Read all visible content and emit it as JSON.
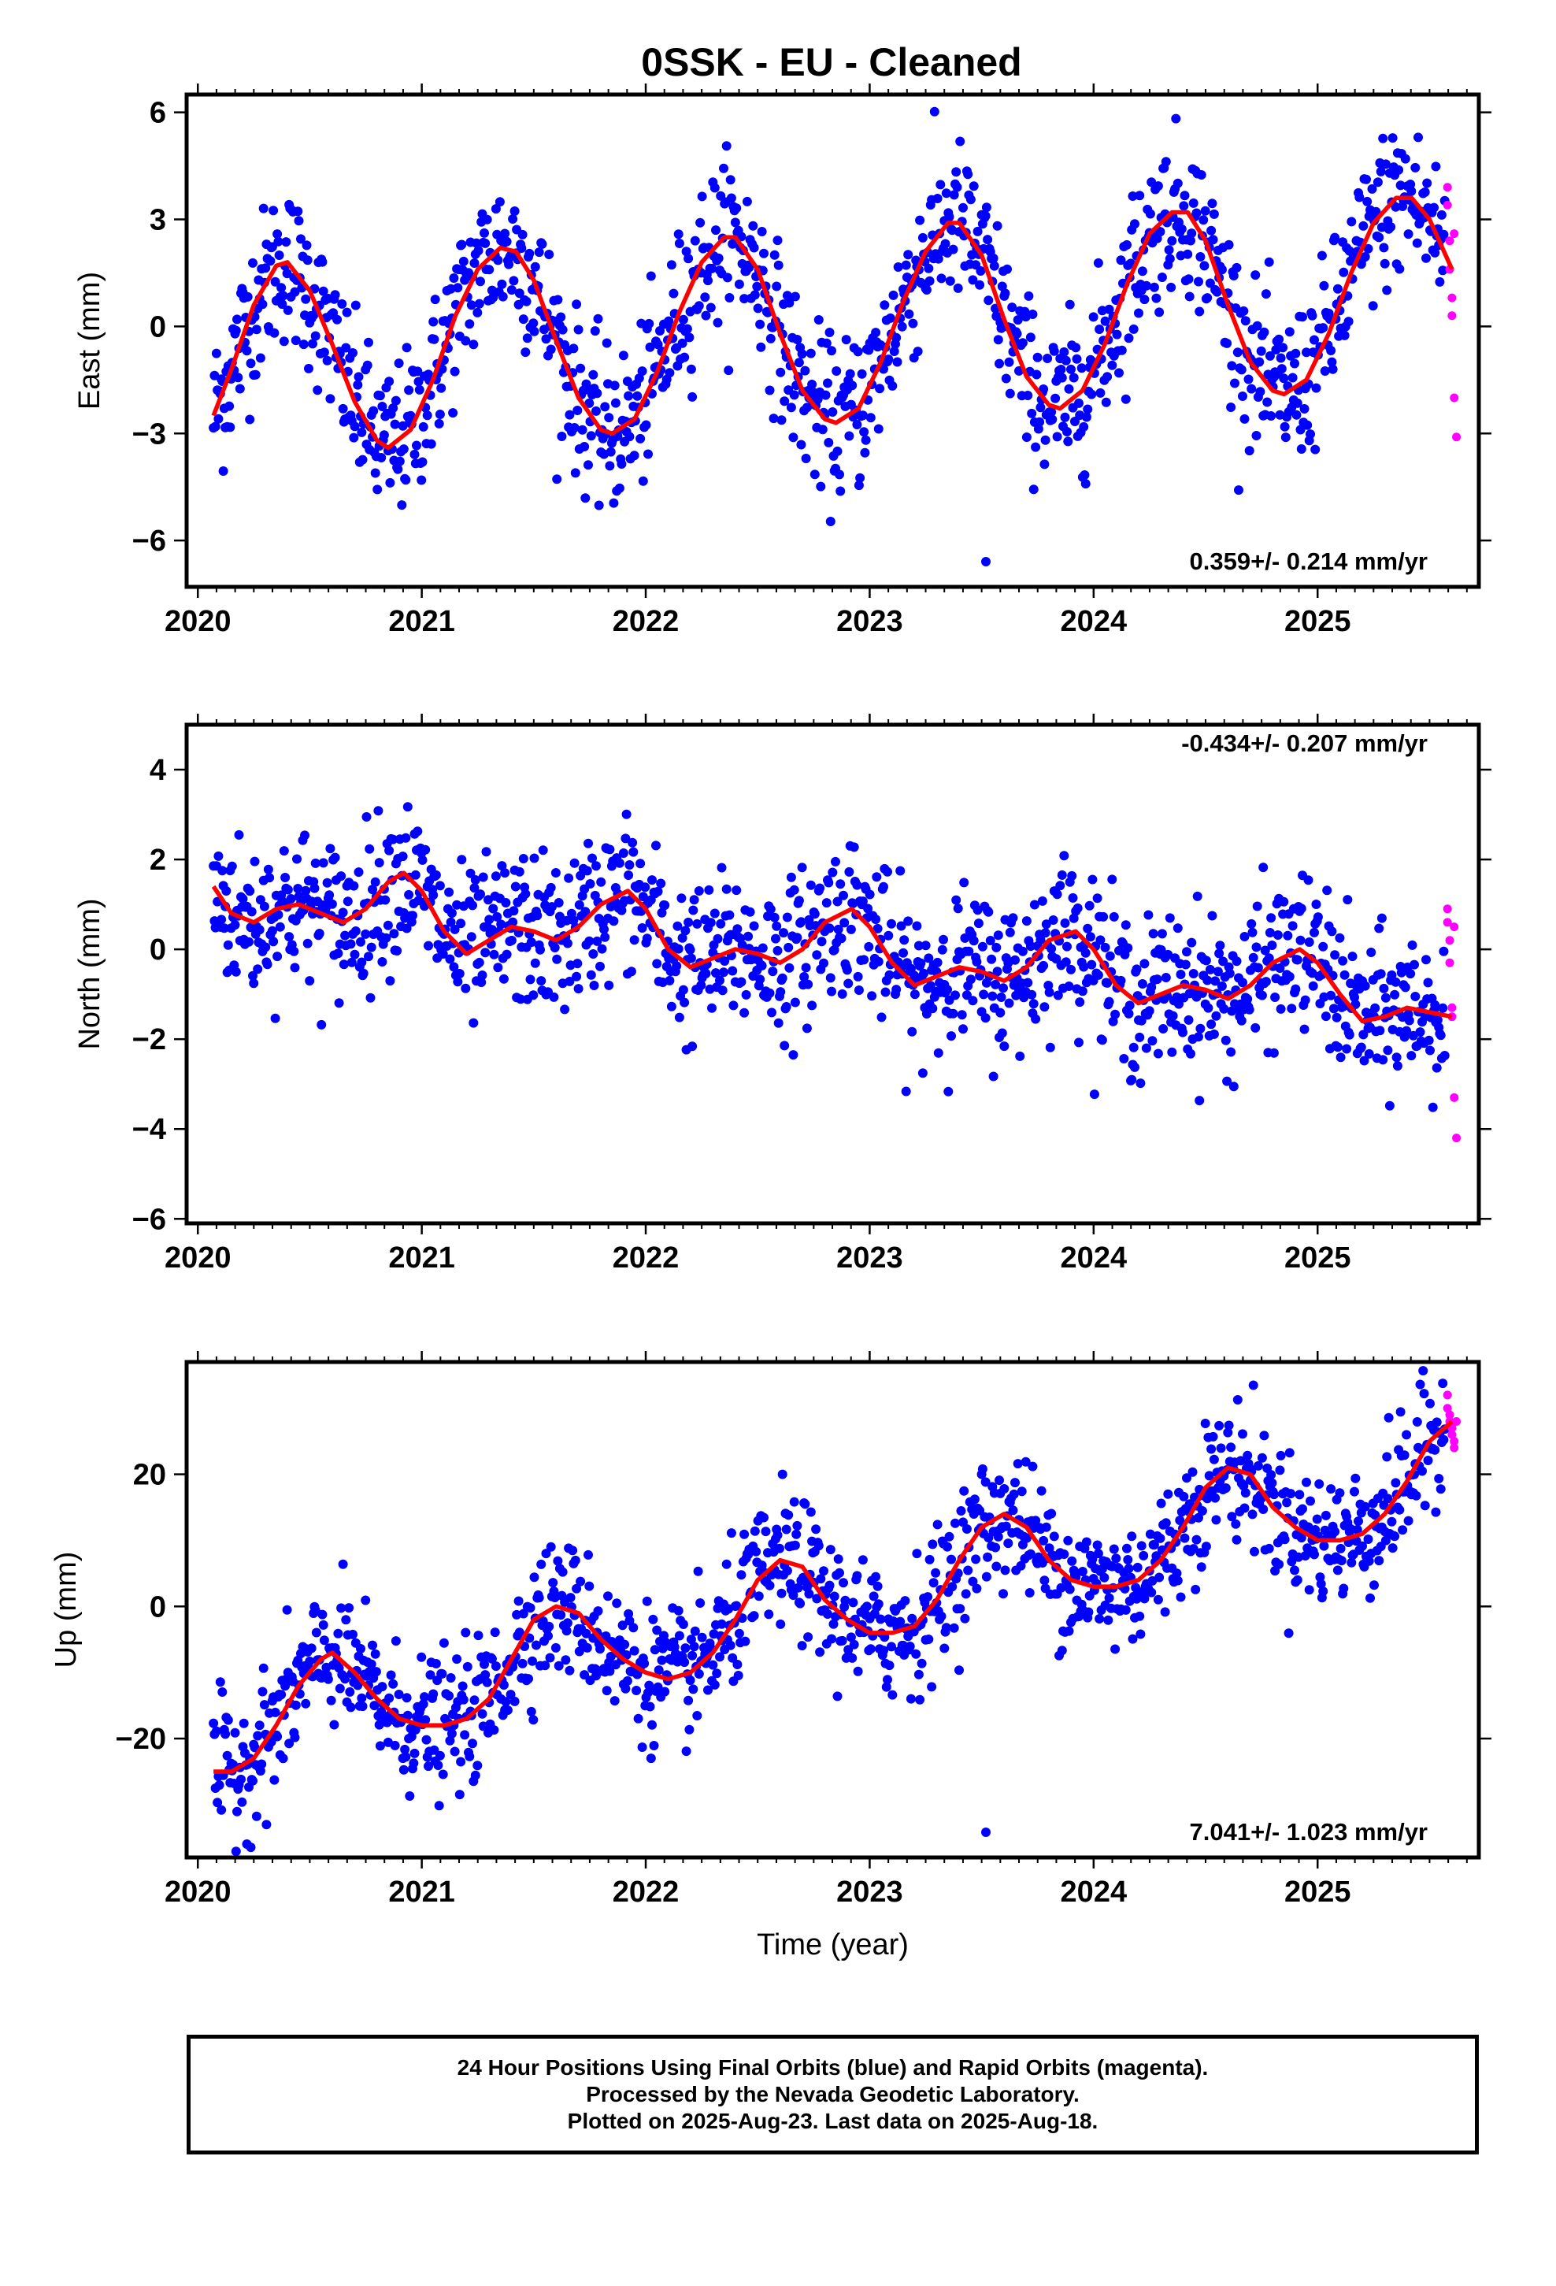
{
  "title": "0SSK  - EU - Cleaned",
  "caption": {
    "line1": "24 Hour Positions Using Final Orbits (blue) and Rapid Orbits (magenta).",
    "line2": "Processed by the Nevada Geodetic Laboratory.",
    "line3": "Plotted on 2025-Aug-23. Last data on 2025-Aug-18."
  },
  "colors": {
    "final": "#0000ff",
    "rapid": "#ff00ff",
    "model": "#ff0000",
    "frame": "#000000"
  },
  "chart_data": [
    {
      "type": "scatter",
      "ylabel": "East (mm)",
      "xlabel": "",
      "xlim": [
        2019.95,
        2025.72
      ],
      "ylim": [
        -7.3,
        6.5
      ],
      "xticks": [
        2020,
        2021,
        2022,
        2023,
        2024,
        2025
      ],
      "yticks": [
        -6,
        -3,
        0,
        3,
        6
      ],
      "rate_label": "0.359+/- 0.214 mm/yr",
      "rate_position": "bottom-right",
      "model_x": [
        2020.07,
        2020.15,
        2020.25,
        2020.35,
        2020.4,
        2020.5,
        2020.6,
        2020.7,
        2020.8,
        2020.85,
        2020.95,
        2021.05,
        2021.15,
        2021.25,
        2021.35,
        2021.42,
        2021.5,
        2021.6,
        2021.7,
        2021.8,
        2021.85,
        2021.95,
        2022.05,
        2022.15,
        2022.25,
        2022.35,
        2022.4,
        2022.5,
        2022.6,
        2022.7,
        2022.8,
        2022.85,
        2022.95,
        2023.05,
        2023.15,
        2023.25,
        2023.35,
        2023.4,
        2023.5,
        2023.6,
        2023.7,
        2023.8,
        2023.85,
        2023.95,
        2024.05,
        2024.15,
        2024.25,
        2024.35,
        2024.42,
        2024.5,
        2024.6,
        2024.7,
        2024.8,
        2024.85,
        2024.95,
        2025.05,
        2025.15,
        2025.25,
        2025.35,
        2025.42,
        2025.5,
        2025.55,
        2025.6
      ],
      "model_y": [
        -2.5,
        -1.2,
        0.6,
        1.7,
        1.8,
        1.0,
        -0.5,
        -2.1,
        -3.2,
        -3.4,
        -2.9,
        -1.5,
        0.3,
        1.6,
        2.2,
        2.1,
        1.3,
        -0.4,
        -2.0,
        -2.9,
        -3.0,
        -2.6,
        -1.3,
        0.4,
        1.8,
        2.5,
        2.5,
        1.6,
        -0.2,
        -1.8,
        -2.6,
        -2.7,
        -2.3,
        -1.0,
        0.7,
        2.1,
        2.9,
        2.9,
        2.0,
        0.2,
        -1.4,
        -2.2,
        -2.3,
        -1.8,
        -0.5,
        1.2,
        2.6,
        3.2,
        3.2,
        2.4,
        0.6,
        -1.0,
        -1.8,
        -1.9,
        -1.5,
        -0.2,
        1.5,
        2.9,
        3.6,
        3.6,
        3.0,
        2.3,
        1.6
      ],
      "rapid_x": [
        2025.58,
        2025.58,
        2025.59,
        2025.59,
        2025.6,
        2025.6,
        2025.61,
        2025.61,
        2025.62
      ],
      "rapid_y": [
        3.9,
        3.4,
        2.4,
        1.6,
        0.8,
        0.3,
        2.6,
        -2.0,
        -3.1
      ]
    },
    {
      "type": "scatter",
      "ylabel": "North (mm)",
      "xlabel": "",
      "xlim": [
        2019.95,
        2025.72
      ],
      "ylim": [
        -6.1,
        5.0
      ],
      "xticks": [
        2020,
        2021,
        2022,
        2023,
        2024,
        2025
      ],
      "yticks": [
        -6,
        -4,
        -2,
        0,
        2,
        4
      ],
      "rate_label": "-0.434+/- 0.207 mm/yr",
      "rate_position": "top-right",
      "model_x": [
        2020.07,
        2020.15,
        2020.25,
        2020.35,
        2020.45,
        2020.55,
        2020.65,
        2020.75,
        2020.85,
        2020.92,
        2021.0,
        2021.1,
        2021.2,
        2021.3,
        2021.4,
        2021.5,
        2021.6,
        2021.7,
        2021.8,
        2021.92,
        2022.0,
        2022.1,
        2022.2,
        2022.3,
        2022.4,
        2022.5,
        2022.6,
        2022.7,
        2022.8,
        2022.92,
        2023.0,
        2023.1,
        2023.2,
        2023.3,
        2023.4,
        2023.5,
        2023.6,
        2023.7,
        2023.8,
        2023.92,
        2024.0,
        2024.1,
        2024.2,
        2024.3,
        2024.4,
        2024.5,
        2024.6,
        2024.7,
        2024.8,
        2024.92,
        2025.0,
        2025.1,
        2025.2,
        2025.3,
        2025.4,
        2025.5,
        2025.6
      ],
      "model_y": [
        1.4,
        0.8,
        0.6,
        0.9,
        1.0,
        0.8,
        0.6,
        0.9,
        1.5,
        1.7,
        1.3,
        0.4,
        -0.1,
        0.2,
        0.5,
        0.4,
        0.2,
        0.5,
        1.0,
        1.3,
        0.9,
        0.0,
        -0.4,
        -0.2,
        0.0,
        -0.1,
        -0.3,
        0.0,
        0.6,
        0.9,
        0.5,
        -0.3,
        -0.8,
        -0.6,
        -0.4,
        -0.5,
        -0.7,
        -0.4,
        0.2,
        0.4,
        0.0,
        -0.8,
        -1.2,
        -1.0,
        -0.8,
        -0.9,
        -1.1,
        -0.8,
        -0.3,
        0.0,
        -0.3,
        -1.0,
        -1.6,
        -1.5,
        -1.3,
        -1.4,
        -1.5
      ],
      "rapid_x": [
        2025.58,
        2025.58,
        2025.59,
        2025.59,
        2025.6,
        2025.6,
        2025.61,
        2025.61,
        2025.62
      ],
      "rapid_y": [
        0.9,
        0.6,
        0.2,
        -0.3,
        -1.3,
        -1.5,
        0.5,
        -3.3,
        -4.2
      ]
    },
    {
      "type": "scatter",
      "ylabel": "Up (mm)",
      "xlabel": "Time (year)",
      "xlim": [
        2019.95,
        2025.72
      ],
      "ylim": [
        -38,
        37
      ],
      "xticks": [
        2020,
        2021,
        2022,
        2023,
        2024,
        2025
      ],
      "yticks": [
        -20,
        0,
        20
      ],
      "rate_label": "7.041+/- 1.023 mm/yr",
      "rate_position": "bottom-right",
      "model_x": [
        2020.07,
        2020.15,
        2020.25,
        2020.35,
        2020.45,
        2020.55,
        2020.6,
        2020.7,
        2020.8,
        2020.9,
        2021.0,
        2021.1,
        2021.2,
        2021.3,
        2021.4,
        2021.5,
        2021.6,
        2021.7,
        2021.8,
        2021.9,
        2022.0,
        2022.1,
        2022.2,
        2022.3,
        2022.4,
        2022.5,
        2022.6,
        2022.7,
        2022.8,
        2022.9,
        2023.0,
        2023.1,
        2023.2,
        2023.3,
        2023.4,
        2023.5,
        2023.6,
        2023.7,
        2023.8,
        2023.9,
        2024.0,
        2024.1,
        2024.2,
        2024.3,
        2024.4,
        2024.5,
        2024.6,
        2024.7,
        2024.8,
        2024.9,
        2025.0,
        2025.1,
        2025.2,
        2025.3,
        2025.4,
        2025.5,
        2025.6
      ],
      "model_y": [
        -25,
        -25,
        -23,
        -18,
        -12,
        -8,
        -7,
        -10,
        -14,
        -17,
        -18,
        -18,
        -17,
        -14,
        -8,
        -2,
        0,
        -1,
        -5,
        -8,
        -10,
        -11,
        -10,
        -7,
        -2,
        4,
        7,
        6,
        1,
        -2,
        -4,
        -4,
        -3,
        1,
        7,
        12,
        14,
        12,
        7,
        4,
        3,
        3,
        4,
        7,
        12,
        18,
        21,
        20,
        15,
        12,
        10,
        10,
        11,
        14,
        19,
        25,
        28
      ],
      "rapid_x": [
        2025.58,
        2025.58,
        2025.59,
        2025.59,
        2025.6,
        2025.6,
        2025.61,
        2025.61,
        2025.62
      ],
      "rapid_y": [
        32,
        30,
        29,
        28,
        27,
        26,
        25,
        24,
        28
      ]
    }
  ]
}
